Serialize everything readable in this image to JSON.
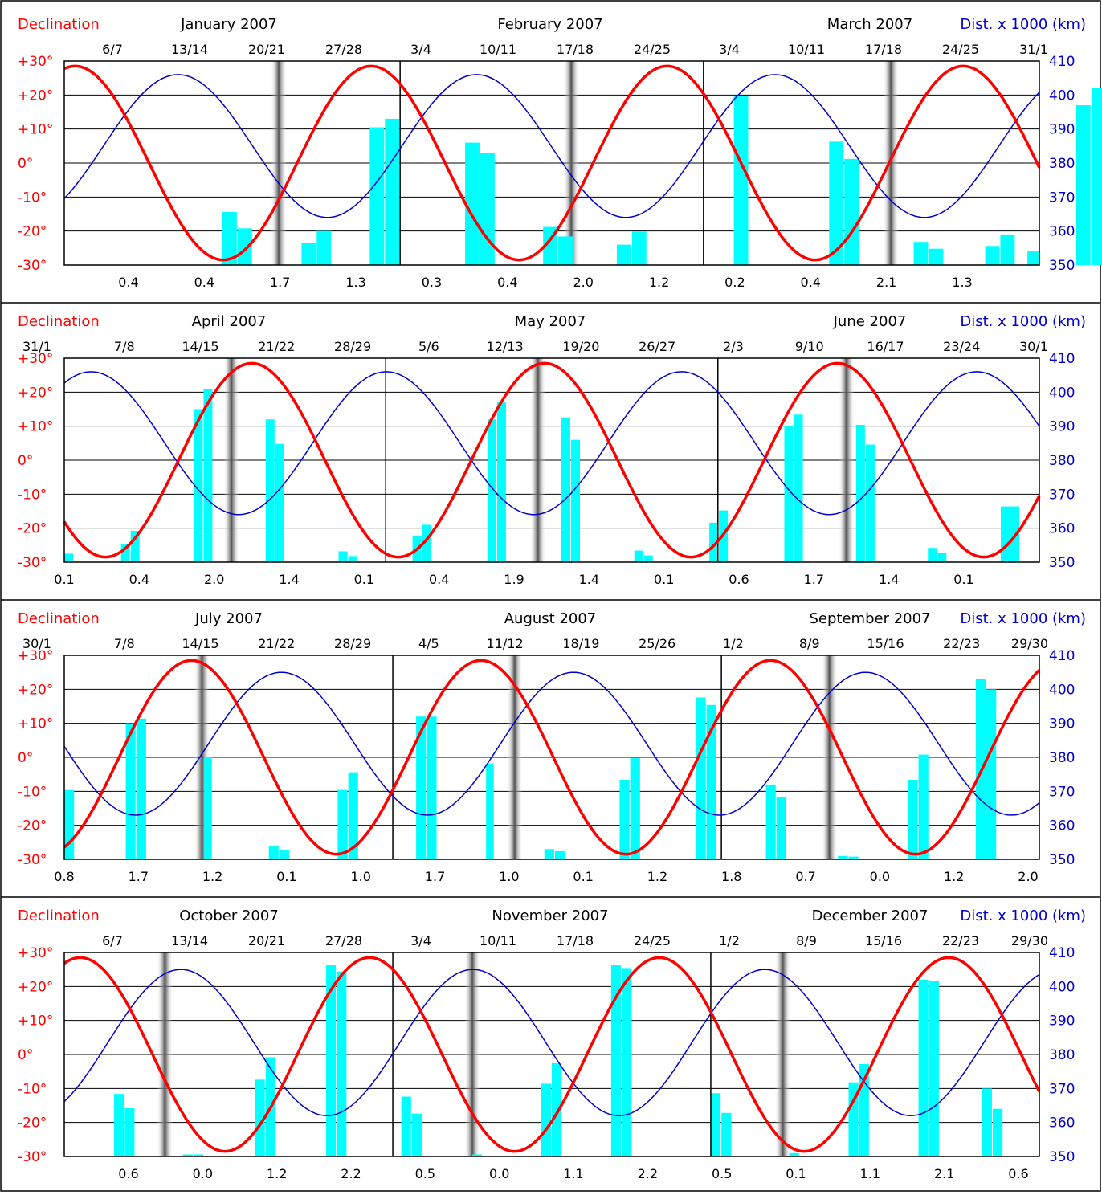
{
  "colors": {
    "declination": "#ff0000",
    "distance": "#0000cc",
    "bars": "#00ffff",
    "frame": "#000000"
  },
  "chart_data": [
    {
      "type": "line+bar",
      "left_label": "Declination",
      "right_label": "Dist. x 1000 (km)",
      "months": [
        "January 2007",
        "February 2007",
        "March 2007"
      ],
      "month_boundaries": [
        31,
        59
      ],
      "days": 90,
      "week_labels": [
        "6/7",
        "13/14",
        "20/21",
        "27/28",
        "3/4",
        "10/11",
        "17/18",
        "24/25",
        "3/4",
        "10/11",
        "17/18",
        "24/25",
        "31/1"
      ],
      "weekly_values": [
        "0.4",
        "0.4",
        "1.7",
        "1.3",
        "0.3",
        "0.4",
        "2.0",
        "1.2",
        "0.2",
        "0.4",
        "2.1",
        "1.3"
      ],
      "y_left": {
        "ticks": [
          "+30°",
          "+20°",
          "+10°",
          "0°",
          "-10°",
          "-20°",
          "-30°"
        ],
        "range": [
          -30,
          30
        ]
      },
      "y_right": {
        "ticks": [
          "410",
          "400",
          "390",
          "380",
          "370",
          "360",
          "350"
        ],
        "range": [
          350,
          410
        ]
      },
      "declination": {
        "amplitude": 28.5,
        "first_max_day": 1.0,
        "period": 27.32
      },
      "distance": {
        "first_max_day": 10.5,
        "mean": 385,
        "amplitude": 21,
        "period": 27.55
      },
      "eclipse_days": [
        19.8,
        46.8,
        76.3
      ],
      "bars": [
        [
          14.6,
          16.0,
          -14.4
        ],
        [
          16.0,
          17.4,
          -19.2
        ],
        [
          21.9,
          23.3,
          -23.6
        ],
        [
          23.3,
          24.7,
          -20.0
        ],
        [
          28.2,
          29.6,
          10.5
        ],
        [
          29.6,
          31.0,
          13.0
        ],
        [
          37.0,
          38.4,
          6.0
        ],
        [
          38.4,
          39.8,
          3.0
        ],
        [
          44.2,
          45.6,
          -18.8
        ],
        [
          45.6,
          47.0,
          -21.6
        ],
        [
          51.0,
          52.4,
          -24.0
        ],
        [
          52.4,
          53.8,
          -20.2
        ],
        [
          61.8,
          63.2,
          19.6
        ],
        [
          70.6,
          72.0,
          6.3
        ],
        [
          72.0,
          73.4,
          1.2
        ],
        [
          78.4,
          79.8,
          -23.2
        ],
        [
          79.8,
          81.2,
          -25.2
        ],
        [
          85.0,
          86.4,
          -24.4
        ],
        [
          86.4,
          87.8,
          -21.0
        ],
        [
          93.4,
          94.8,
          17.0
        ],
        [
          94.8,
          96.2,
          22.0
        ],
        [
          101.2,
          102.6,
          9.0
        ],
        [
          102.6,
          104.0,
          2.6
        ]
      ],
      "tail_bars": [
        [
          88.9,
          90.0,
          -26.0
        ]
      ]
    },
    {
      "type": "line+bar",
      "left_label": "Declination",
      "right_label": "Dist. x 1000 (km)",
      "months": [
        "April 2007",
        "May 2007",
        "June 2007"
      ],
      "month_boundaries": [
        30,
        61
      ],
      "days": 91,
      "week_labels": [
        "31/1",
        "7/8",
        "14/15",
        "21/22",
        "28/29",
        "5/6",
        "12/13",
        "19/20",
        "26/27",
        "2/3",
        "9/10",
        "16/17",
        "23/24",
        "30/1"
      ],
      "weekly_values": [
        "0.1",
        "0.4",
        "2.0",
        "1.4",
        "0.1",
        "0.4",
        "1.9",
        "1.4",
        "0.1",
        "0.6",
        "1.7",
        "1.4",
        "0.1"
      ],
      "y_left": {
        "ticks": [
          "+30°",
          "+20°",
          "+10°",
          "0°",
          "-10°",
          "-20°",
          "-30°"
        ],
        "range": [
          -30,
          30
        ]
      },
      "y_right": {
        "ticks": [
          "410",
          "400",
          "390",
          "380",
          "370",
          "360",
          "350"
        ],
        "range": [
          350,
          410
        ]
      },
      "declination": {
        "amplitude": 28.5,
        "first_max_day": 17.5,
        "period": 27.32
      },
      "distance": {
        "first_max_day": 2.5,
        "mean": 385,
        "amplitude": 21,
        "period": 27.55
      },
      "eclipse_days": [
        15.6,
        44.2,
        73.0
      ],
      "bars": [
        [
          0.0,
          0.9,
          -27.5
        ],
        [
          5.3,
          6.2,
          -24.6
        ],
        [
          6.2,
          7.1,
          -20.8
        ],
        [
          12.1,
          13.0,
          15.0
        ],
        [
          13.0,
          13.9,
          21.0
        ],
        [
          18.8,
          19.7,
          12.0
        ],
        [
          19.7,
          20.6,
          4.8
        ],
        [
          25.6,
          26.5,
          -26.8
        ],
        [
          26.5,
          27.4,
          -28.2
        ],
        [
          32.5,
          33.4,
          -22.2
        ],
        [
          33.4,
          34.3,
          -19.0
        ],
        [
          39.5,
          40.4,
          12.0
        ],
        [
          40.4,
          41.3,
          17.0
        ],
        [
          46.4,
          47.3,
          12.6
        ],
        [
          47.3,
          48.2,
          6.0
        ],
        [
          53.2,
          54.1,
          -26.6
        ],
        [
          54.1,
          55.0,
          -28.0
        ],
        [
          60.2,
          61.1,
          -18.4
        ],
        [
          61.1,
          62.0,
          -14.8
        ],
        [
          67.2,
          68.1,
          10.0
        ],
        [
          68.1,
          69.0,
          13.4
        ],
        [
          73.9,
          74.8,
          10.4
        ],
        [
          74.8,
          75.7,
          4.6
        ],
        [
          80.6,
          81.5,
          -25.8
        ],
        [
          81.5,
          82.4,
          -27.2
        ],
        [
          87.4,
          88.3,
          -13.6
        ],
        [
          88.3,
          89.2,
          -13.6
        ]
      ]
    },
    {
      "type": "line+bar",
      "left_label": "Declination",
      "right_label": "Dist. x 1000 (km)",
      "months": [
        "July 2007",
        "August 2007",
        "September 2007"
      ],
      "month_boundaries": [
        31,
        62
      ],
      "days": 92,
      "week_labels": [
        "30/1",
        "7/8",
        "14/15",
        "21/22",
        "28/29",
        "4/5",
        "11/12",
        "18/19",
        "25/26",
        "1/2",
        "8/9",
        "15/16",
        "22/23",
        "29/30"
      ],
      "weekly_values": [
        "0.8",
        "1.7",
        "1.2",
        "0.1",
        "1.0",
        "1.7",
        "1.0",
        "0.1",
        "1.2",
        "1.8",
        "0.7",
        "0.0",
        "1.2",
        "2.0"
      ],
      "y_left": {
        "ticks": [
          "+30°",
          "+20°",
          "+10°",
          "0°",
          "-10°",
          "-20°",
          "-30°"
        ],
        "range": [
          -30,
          30
        ]
      },
      "y_right": {
        "ticks": [
          "410",
          "400",
          "390",
          "380",
          "370",
          "360",
          "350"
        ],
        "range": [
          350,
          410
        ]
      },
      "declination": {
        "amplitude": 28.5,
        "first_max_day": 12.0,
        "period": 27.32
      },
      "distance": {
        "first_max_day": 20.5,
        "mean": 384,
        "amplitude": 21,
        "period": 27.55
      },
      "eclipse_days": [
        13.0,
        42.5,
        72.2
      ],
      "bars": [
        [
          0.0,
          1.0,
          -9.6
        ],
        [
          5.8,
          6.8,
          10.0
        ],
        [
          6.8,
          7.8,
          11.4
        ],
        [
          13.2,
          14.0,
          0.0
        ],
        [
          19.3,
          20.3,
          -26.2
        ],
        [
          20.3,
          21.3,
          -27.4
        ],
        [
          25.8,
          26.8,
          -9.6
        ],
        [
          26.8,
          27.8,
          -4.4
        ],
        [
          33.2,
          34.2,
          12.0
        ],
        [
          34.2,
          35.2,
          12.0
        ],
        [
          39.8,
          40.6,
          -1.8
        ],
        [
          45.3,
          46.3,
          -27.0
        ],
        [
          46.3,
          47.3,
          -27.6
        ],
        [
          52.4,
          53.4,
          -6.6
        ],
        [
          53.4,
          54.4,
          -0.2
        ],
        [
          59.6,
          60.6,
          17.6
        ],
        [
          60.6,
          61.6,
          15.4
        ],
        [
          66.2,
          67.2,
          -8.0
        ],
        [
          67.2,
          68.2,
          -11.8
        ],
        [
          73.0,
          74.0,
          -29.0
        ],
        [
          74.0,
          75.0,
          -29.2
        ],
        [
          79.6,
          80.6,
          -6.6
        ],
        [
          80.6,
          81.6,
          0.8
        ],
        [
          86.0,
          87.0,
          23.0
        ],
        [
          87.0,
          88.0,
          20.0
        ]
      ]
    },
    {
      "type": "line+bar",
      "left_label": "Declination",
      "right_label": "Dist. x 1000 (km)",
      "months": [
        "October 2007",
        "November 2007",
        "December 2007"
      ],
      "month_boundaries": [
        31,
        61
      ],
      "days": 92,
      "week_labels": [
        "6/7",
        "13/14",
        "20/21",
        "27/28",
        "3/4",
        "10/11",
        "17/18",
        "24/25",
        "1/2",
        "8/9",
        "15/16",
        "22/23",
        "29/30"
      ],
      "weekly_values": [
        "0.6",
        "0.0",
        "1.2",
        "2.2",
        "0.5",
        "0.0",
        "1.1",
        "2.2",
        "0.5",
        "0.1",
        "1.1",
        "2.1",
        "0.6"
      ],
      "y_left": {
        "ticks": [
          "+30°",
          "+20°",
          "+10°",
          "0°",
          "-10°",
          "-20°",
          "-30°"
        ],
        "range": [
          -30,
          30
        ]
      },
      "y_right": {
        "ticks": [
          "410",
          "400",
          "390",
          "380",
          "370",
          "360",
          "350"
        ],
        "range": [
          350,
          410
        ]
      },
      "declination": {
        "amplitude": 28.5,
        "first_max_day": 1.5,
        "period": 27.32
      },
      "distance": {
        "first_max_day": 11.0,
        "mean": 383.5,
        "amplitude": 21.5,
        "period": 27.55
      },
      "eclipse_days": [
        9.5,
        38.5,
        67.8
      ],
      "bars": [
        [
          4.7,
          5.7,
          -11.6
        ],
        [
          5.7,
          6.7,
          -15.8
        ],
        [
          11.2,
          12.2,
          -29.4
        ],
        [
          12.2,
          13.2,
          -29.4
        ],
        [
          18.0,
          19.0,
          -7.4
        ],
        [
          19.0,
          20.0,
          -0.8
        ],
        [
          24.7,
          25.7,
          26.2
        ],
        [
          25.7,
          26.7,
          24.4
        ],
        [
          31.8,
          32.8,
          -12.4
        ],
        [
          32.8,
          33.8,
          -17.4
        ],
        [
          38.5,
          39.5,
          -29.4
        ],
        [
          45.0,
          46.0,
          -8.6
        ],
        [
          46.0,
          47.0,
          -2.6
        ],
        [
          51.6,
          52.6,
          26.2
        ],
        [
          52.6,
          53.6,
          25.4
        ],
        [
          61.0,
          62.0,
          -11.4
        ],
        [
          62.0,
          63.0,
          -17.2
        ],
        [
          68.4,
          69.4,
          -29.0
        ],
        [
          74.0,
          75.0,
          -8.2
        ],
        [
          75.0,
          76.0,
          -2.8
        ],
        [
          80.6,
          81.6,
          22.0
        ],
        [
          81.6,
          82.6,
          21.6
        ],
        [
          86.6,
          87.6,
          -10.0
        ],
        [
          87.6,
          88.6,
          -16.0
        ]
      ]
    }
  ]
}
